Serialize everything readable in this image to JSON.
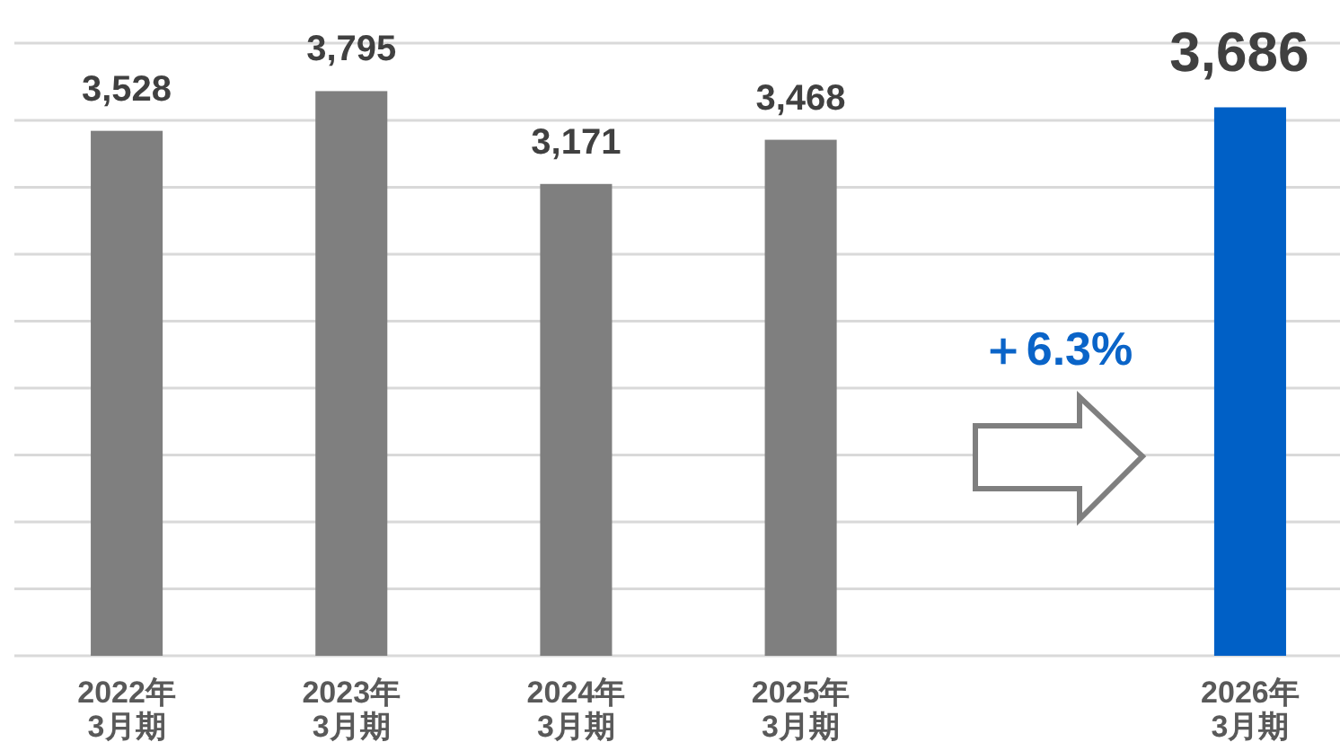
{
  "chart_data": {
    "type": "bar",
    "categories": [
      "2022年\n3月期",
      "2023年\n3月期",
      "2024年\n3月期",
      "2025年\n3月期",
      null,
      "2026年\n3月期"
    ],
    "values": [
      3528,
      3795,
      3171,
      3468,
      null,
      3686
    ],
    "colors": [
      "#7f7f7f",
      "#7f7f7f",
      "#7f7f7f",
      "#7f7f7f",
      null,
      "#0060c6"
    ],
    "value_labels": [
      "3,528",
      "3,795",
      "3,171",
      "3,468",
      null,
      "3,686"
    ],
    "grid": "y",
    "annotations": [
      "＋6.3%"
    ]
  }
}
